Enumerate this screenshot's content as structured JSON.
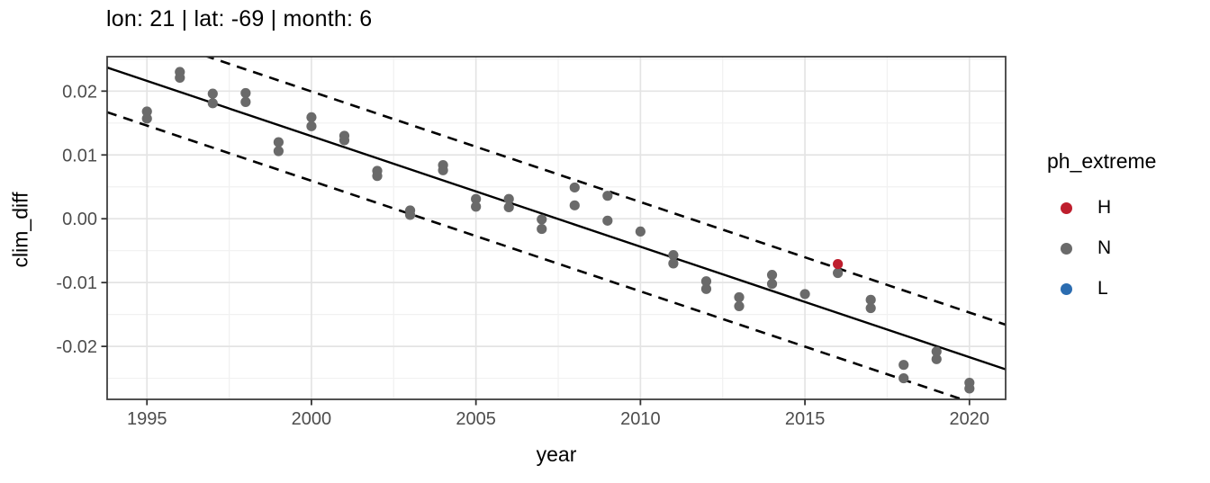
{
  "chart_data": {
    "type": "scatter",
    "title": "lon: 21 | lat: -69 | month: 6",
    "xlabel": "year",
    "ylabel": "clim_diff",
    "xlim": [
      1993.79,
      2021.1
    ],
    "ylim": [
      -0.0283,
      0.0254
    ],
    "grid": "major+minor",
    "legend_position": "right",
    "x_ticks": [
      {
        "value": 1995,
        "label": "1995"
      },
      {
        "value": 2000,
        "label": "2000"
      },
      {
        "value": 2005,
        "label": "2005"
      },
      {
        "value": 2010,
        "label": "2010"
      },
      {
        "value": 2015,
        "label": "2015"
      },
      {
        "value": 2020,
        "label": "2020"
      }
    ],
    "y_ticks": [
      {
        "value": 0.02,
        "label": "0.02"
      },
      {
        "value": 0.01,
        "label": "0.01"
      },
      {
        "value": 0.0,
        "label": "0.00"
      },
      {
        "value": -0.01,
        "label": "-0.01"
      },
      {
        "value": -0.02,
        "label": "-0.02"
      }
    ],
    "x_minor_gridlines": [
      1997.5,
      2002.5,
      2007.5,
      2012.5,
      2017.5
    ],
    "y_minor_gridlines": [
      0.025,
      0.015,
      0.005,
      -0.005,
      -0.015,
      -0.025
    ],
    "series": [
      {
        "name": "H",
        "color": "#BE1E2D",
        "points": [
          {
            "x": 2016,
            "y": -0.0071
          }
        ]
      },
      {
        "name": "N",
        "color": "#6A6A6A",
        "points": [
          {
            "x": 1995,
            "y": 0.0168
          },
          {
            "x": 1995,
            "y": 0.0157
          },
          {
            "x": 1996,
            "y": 0.023
          },
          {
            "x": 1996,
            "y": 0.0221
          },
          {
            "x": 1997,
            "y": 0.0196
          },
          {
            "x": 1997,
            "y": 0.0181
          },
          {
            "x": 1998,
            "y": 0.0197
          },
          {
            "x": 1998,
            "y": 0.0183
          },
          {
            "x": 1999,
            "y": 0.012
          },
          {
            "x": 1999,
            "y": 0.0106
          },
          {
            "x": 2000,
            "y": 0.0159
          },
          {
            "x": 2000,
            "y": 0.0145
          },
          {
            "x": 2001,
            "y": 0.013
          },
          {
            "x": 2001,
            "y": 0.0123
          },
          {
            "x": 2002,
            "y": 0.0075
          },
          {
            "x": 2002,
            "y": 0.0067
          },
          {
            "x": 2003,
            "y": 0.0013
          },
          {
            "x": 2003,
            "y": 0.0006
          },
          {
            "x": 2004,
            "y": 0.0084
          },
          {
            "x": 2004,
            "y": 0.0076
          },
          {
            "x": 2005,
            "y": 0.0031
          },
          {
            "x": 2005,
            "y": 0.0019
          },
          {
            "x": 2006,
            "y": 0.0031
          },
          {
            "x": 2006,
            "y": 0.0018
          },
          {
            "x": 2007,
            "y": -0.0001
          },
          {
            "x": 2007,
            "y": -0.0016
          },
          {
            "x": 2008,
            "y": 0.0049
          },
          {
            "x": 2008,
            "y": 0.0021
          },
          {
            "x": 2009,
            "y": 0.0036
          },
          {
            "x": 2009,
            "y": -0.0003
          },
          {
            "x": 2010,
            "y": -0.002
          },
          {
            "x": 2011,
            "y": -0.0057
          },
          {
            "x": 2011,
            "y": -0.007
          },
          {
            "x": 2012,
            "y": -0.0098
          },
          {
            "x": 2012,
            "y": -0.011
          },
          {
            "x": 2013,
            "y": -0.0123
          },
          {
            "x": 2013,
            "y": -0.0137
          },
          {
            "x": 2014,
            "y": -0.0088
          },
          {
            "x": 2014,
            "y": -0.0102
          },
          {
            "x": 2015,
            "y": -0.0118
          },
          {
            "x": 2016,
            "y": -0.0085
          },
          {
            "x": 2017,
            "y": -0.0127
          },
          {
            "x": 2017,
            "y": -0.014
          },
          {
            "x": 2018,
            "y": -0.0229
          },
          {
            "x": 2018,
            "y": -0.025
          },
          {
            "x": 2019,
            "y": -0.0208
          },
          {
            "x": 2019,
            "y": -0.022
          },
          {
            "x": 2020,
            "y": -0.0257
          },
          {
            "x": 2020,
            "y": -0.0266
          }
        ]
      },
      {
        "name": "L",
        "color": "#2B6CB0",
        "points": []
      }
    ],
    "trend_line": {
      "style": "solid",
      "color": "#000000",
      "start": {
        "x": 1993.79,
        "y": 0.0237
      },
      "end": {
        "x": 2021.1,
        "y": -0.0236
      }
    },
    "interval_lines": {
      "style": "dashed",
      "color": "#000000",
      "offset": 0.007
    },
    "legend": {
      "title": "ph_extreme",
      "items": [
        {
          "label": "H",
          "color": "#BE1E2D"
        },
        {
          "label": "N",
          "color": "#6A6A6A"
        },
        {
          "label": "L",
          "color": "#2B6CB0"
        }
      ]
    },
    "colors": {
      "grid_major": "#E4E4E4",
      "grid_minor": "#F1F1F1",
      "panel_border": "#3F3F3F",
      "axis_text": "#4D4D4D",
      "tick_mark": "#333333",
      "label_text": "#000000",
      "background": "#FFFFFF"
    }
  }
}
